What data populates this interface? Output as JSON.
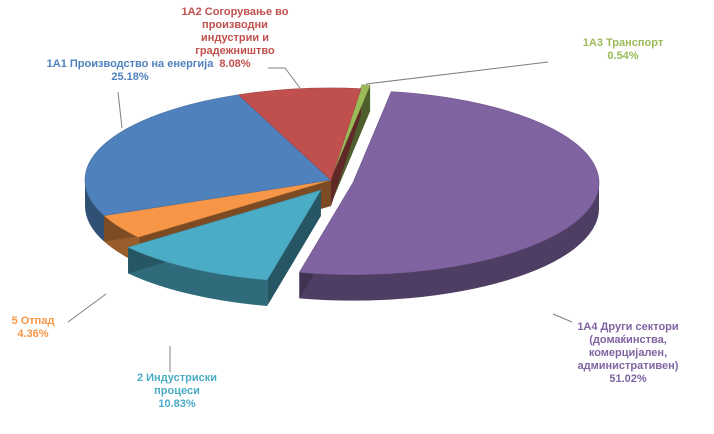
{
  "chart_data": {
    "type": "pie",
    "title": "",
    "slices": [
      {
        "key": "s1a3",
        "label_lines": [
          "1А3 Транспорт"
        ],
        "value": 0.54,
        "value_label": "0.54%",
        "color": "#9BBB59"
      },
      {
        "key": "s1a4",
        "label_lines": [
          "1А4 Други сектори",
          "(домаќинства,",
          "комерцијален,",
          "административен)"
        ],
        "value": 51.02,
        "value_label": "51.02%",
        "color": "#8064A2"
      },
      {
        "key": "s2",
        "label_lines": [
          "2 Индустриски",
          "процеси"
        ],
        "value": 10.83,
        "value_label": "10.83%",
        "color": "#4BACC6"
      },
      {
        "key": "s5",
        "label_lines": [
          "5 Отпад"
        ],
        "value": 4.36,
        "value_label": "4.36%",
        "color": "#F79646"
      },
      {
        "key": "s1a1",
        "label_lines": [
          "1А1 Производство  на енергија"
        ],
        "value": 25.18,
        "value_label": "25.18%",
        "color": "#4F81BD"
      },
      {
        "key": "s1a2",
        "label_lines": [
          "1А2 Согорување  во",
          "производни",
          "индустрии  и",
          "градежништво"
        ],
        "value": 8.08,
        "value_label": "8.08%",
        "color": "#C0504D"
      }
    ],
    "legend": "none",
    "style": "3d-exploded"
  }
}
